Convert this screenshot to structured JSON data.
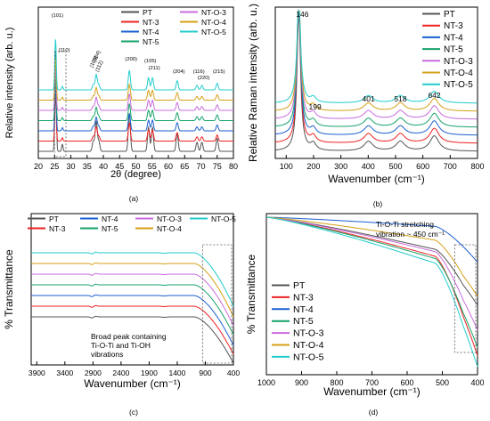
{
  "colors": {
    "PT": "#555555",
    "NT-3": "#ee2222",
    "NT-4": "#1a5fd0",
    "NT-5": "#16a36a",
    "NT-O-3": "#c86bdc",
    "NT-O-4": "#d4a017",
    "NT-O-5": "#22cccc",
    "axis": "#000000",
    "dashed_box": "#555555"
  },
  "chart_data": [
    {
      "panel": "a",
      "type": "line",
      "caption": "(a)",
      "xlabel": "2θ (degree)",
      "ylabel": "Relative intensity (arb. u.)",
      "xlim": [
        20,
        80
      ],
      "x_ticks": [
        20,
        25,
        30,
        35,
        40,
        45,
        50,
        55,
        60,
        65,
        70,
        75,
        80
      ],
      "y_ticks_shown": false,
      "grid": false,
      "legend_position": "top-right",
      "legend_columns": 2,
      "legend_order": [
        "PT",
        "NT-O-3",
        "NT-3",
        "NT-O-4",
        "NT-4",
        "NT-O-5",
        "NT-5"
      ],
      "stack_order_bottom_to_top": [
        "PT",
        "NT-3",
        "NT-4",
        "NT-5",
        "NT-O-3",
        "NT-O-4",
        "NT-O-5"
      ],
      "series": [
        {
          "name": "PT"
        },
        {
          "name": "NT-3"
        },
        {
          "name": "NT-4"
        },
        {
          "name": "NT-5"
        },
        {
          "name": "NT-O-3"
        },
        {
          "name": "NT-O-4"
        },
        {
          "name": "NT-O-5"
        }
      ],
      "peaks": [
        {
          "x": 25.3,
          "label": "(101)",
          "height": 1.0
        },
        {
          "x": 27.4,
          "label": "(110)",
          "height": 0.07
        },
        {
          "x": 36.9,
          "label": "(103)",
          "height": 0.1
        },
        {
          "x": 37.8,
          "label": "(004)",
          "height": 0.3
        },
        {
          "x": 38.6,
          "label": "(112)",
          "height": 0.1
        },
        {
          "x": 48.0,
          "label": "(200)",
          "height": 0.38
        },
        {
          "x": 53.9,
          "label": "(105)",
          "height": 0.24
        },
        {
          "x": 55.1,
          "label": "(211)",
          "height": 0.24
        },
        {
          "x": 62.7,
          "label": "(204)",
          "height": 0.18
        },
        {
          "x": 68.8,
          "label": "(116)",
          "height": 0.09
        },
        {
          "x": 70.3,
          "label": "(220)",
          "height": 0.09
        },
        {
          "x": 75.0,
          "label": "(215)",
          "height": 0.13
        }
      ],
      "dashed_box_x": [
        25.0,
        28.5
      ]
    },
    {
      "panel": "b",
      "type": "line",
      "caption": "(b)",
      "xlabel": "Wavenumber (cm⁻¹)",
      "ylabel": "Relative Raman intensity (arb. u.)",
      "xlim": [
        60,
        800
      ],
      "x_ticks": [
        100,
        200,
        300,
        400,
        500,
        600,
        700,
        800
      ],
      "y_ticks_shown": false,
      "grid": false,
      "legend_position": "top-right",
      "stack_order_bottom_to_top": [
        "PT",
        "NT-3",
        "NT-4",
        "NT-5",
        "NT-O-3",
        "NT-O-4",
        "NT-O-5"
      ],
      "series": [
        {
          "name": "PT"
        },
        {
          "name": "NT-3"
        },
        {
          "name": "NT-4"
        },
        {
          "name": "NT-5"
        },
        {
          "name": "NT-O-3"
        },
        {
          "name": "NT-O-4"
        },
        {
          "name": "NT-O-5"
        }
      ],
      "peaks": [
        {
          "x": 146,
          "label": "146",
          "height": 1.0
        },
        {
          "x": 199,
          "label": "199",
          "height": 0.05
        },
        {
          "x": 401,
          "label": "401",
          "height": 0.07
        },
        {
          "x": 518,
          "label": "518",
          "height": 0.07
        },
        {
          "x": 642,
          "label": "642",
          "height": 0.11
        }
      ]
    },
    {
      "panel": "c",
      "type": "line",
      "caption": "(c)",
      "xlabel": "Wavenumber (cm⁻¹)",
      "ylabel": "% Transmittance",
      "xlim": [
        4000,
        400
      ],
      "x_ticks": [
        3900,
        3400,
        2900,
        2400,
        1900,
        1400,
        900,
        400
      ],
      "y_ticks_shown": false,
      "grid": false,
      "legend_position": "top",
      "legend_columns": 4,
      "legend_order": [
        "PT",
        "NT-4",
        "NT-O-3",
        "NT-O-5",
        "NT-3",
        "NT-5",
        "NT-O-4"
      ],
      "stack_order_bottom_to_top": [
        "PT",
        "NT-3",
        "NT-4",
        "NT-5",
        "NT-O-3",
        "NT-O-4",
        "NT-O-5"
      ],
      "series": [
        {
          "name": "PT"
        },
        {
          "name": "NT-3"
        },
        {
          "name": "NT-4"
        },
        {
          "name": "NT-5"
        },
        {
          "name": "NT-O-3"
        },
        {
          "name": "NT-O-4"
        },
        {
          "name": "NT-O-5"
        }
      ],
      "annotation": "Broad peak containing\nTi-O-Ti and Ti-OH\nvibrations",
      "dashed_box_x": [
        950,
        400
      ]
    },
    {
      "panel": "d",
      "type": "line",
      "caption": "(d)",
      "xlabel": "Wavenumber (cm⁻¹)",
      "ylabel": "% Transmittance",
      "xlim": [
        1000,
        400
      ],
      "x_ticks": [
        1000,
        900,
        800,
        700,
        600,
        500,
        400
      ],
      "y_ticks_shown": false,
      "grid": false,
      "legend_position": "bottom-left",
      "legend_order": [
        "PT",
        "NT-3",
        "NT-4",
        "NT-5",
        "NT-O-3",
        "NT-O-4",
        "NT-O-5"
      ],
      "series": [
        {
          "name": "PT",
          "end_level": 0.44
        },
        {
          "name": "NT-3",
          "end_level": 0.12
        },
        {
          "name": "NT-4",
          "end_level": 0.72
        },
        {
          "name": "NT-5",
          "end_level": 0.18
        },
        {
          "name": "NT-O-3",
          "end_level": 0.28
        },
        {
          "name": "NT-O-4",
          "end_level": 0.48
        },
        {
          "name": "NT-O-5",
          "end_level": 0.06
        }
      ],
      "annotation": "Ti-O-Ti stretching\nvibration ~ 450 cm⁻¹",
      "dashed_box_x": [
        465,
        400
      ]
    }
  ]
}
